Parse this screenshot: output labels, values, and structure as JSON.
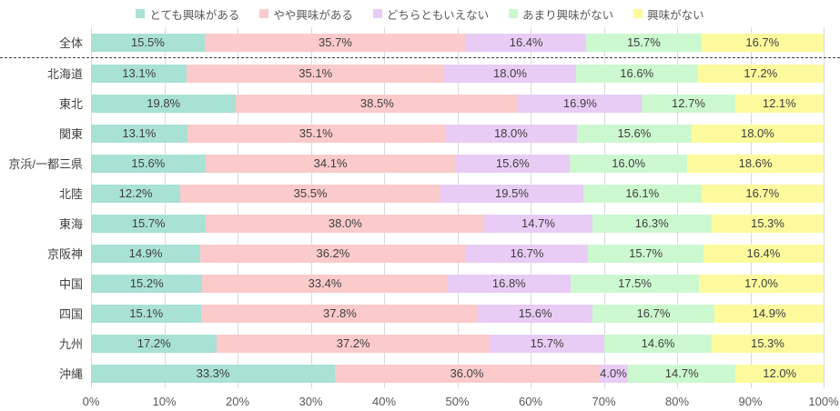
{
  "chart_data": {
    "type": "bar",
    "subtype": "100-percent-stacked-horizontal",
    "title": "",
    "unit": "%",
    "categories": [
      "全体",
      "北海道",
      "東北",
      "関東",
      "京浜/一都三県",
      "北陸",
      "東海",
      "京阪神",
      "中国",
      "四国",
      "九州",
      "沖縄"
    ],
    "separator_after": "全体",
    "series": [
      {
        "name": "とても興味がある",
        "color": "#A9E1D5",
        "values": [
          15.5,
          13.1,
          19.8,
          13.1,
          15.6,
          12.2,
          15.7,
          14.9,
          15.2,
          15.1,
          17.2,
          33.3
        ]
      },
      {
        "name": "やや興味がある",
        "color": "#FBCACB",
        "values": [
          35.7,
          35.1,
          38.5,
          35.1,
          34.1,
          35.5,
          38.0,
          36.2,
          33.4,
          37.8,
          37.2,
          36.0
        ]
      },
      {
        "name": "どちらともいえない",
        "color": "#E8CCF5",
        "values": [
          16.4,
          18.0,
          16.9,
          18.0,
          15.6,
          19.5,
          14.7,
          16.7,
          16.8,
          15.6,
          15.7,
          4.0
        ]
      },
      {
        "name": "あまり興味がない",
        "color": "#CCF8CF",
        "values": [
          15.7,
          16.6,
          12.7,
          15.6,
          16.0,
          16.1,
          16.3,
          15.7,
          17.5,
          16.7,
          14.6,
          14.7
        ]
      },
      {
        "name": "興味がない",
        "color": "#FDFA9E",
        "values": [
          16.7,
          17.2,
          12.1,
          18.0,
          18.6,
          16.7,
          15.3,
          16.4,
          17.0,
          14.9,
          15.3,
          12.0
        ]
      }
    ],
    "x_axis": {
      "min": 0,
      "max": 100,
      "ticks": [
        "0%",
        "10%",
        "20%",
        "30%",
        "40%",
        "50%",
        "60%",
        "70%",
        "80%",
        "90%",
        "100%"
      ],
      "grid": true
    },
    "legend_position": "top",
    "value_label_format": "one-decimal-percent"
  }
}
